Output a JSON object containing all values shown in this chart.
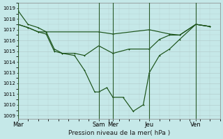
{
  "xlabel": "Pression niveau de la mer( hPa )",
  "bg_color": "#c5e8e8",
  "grid_color": "#b0c8c8",
  "line_color": "#1a5218",
  "vline_color": "#2a5a2a",
  "ylim": [
    1009,
    1019
  ],
  "yticks": [
    1009,
    1010,
    1011,
    1012,
    1013,
    1014,
    1015,
    1016,
    1017,
    1018,
    1019
  ],
  "day_labels": [
    "Mar",
    "Sam",
    "Mer",
    "Jeu",
    "Ven"
  ],
  "day_x": [
    0,
    40,
    47,
    65,
    88
  ],
  "vline_x": [
    0,
    40,
    47,
    65,
    88
  ],
  "xlim": [
    0,
    100
  ],
  "line1_x": [
    0,
    5,
    10,
    14,
    40,
    47,
    65,
    75,
    80,
    88,
    95
  ],
  "line1_y": [
    1017.5,
    1017.2,
    1016.8,
    1016.8,
    1016.8,
    1016.6,
    1017.0,
    1016.6,
    1016.5,
    1017.5,
    1017.3
  ],
  "line2_x": [
    0,
    5,
    10,
    14,
    18,
    22,
    28,
    33,
    40,
    47,
    55,
    65,
    70,
    75,
    80,
    88,
    95
  ],
  "line2_y": [
    1017.5,
    1017.2,
    1016.8,
    1016.6,
    1015.0,
    1014.8,
    1014.8,
    1014.6,
    1015.5,
    1014.8,
    1015.2,
    1015.2,
    1016.1,
    1016.5,
    1016.5,
    1017.5,
    1017.3
  ],
  "line3_x": [
    0,
    5,
    10,
    14,
    18,
    22,
    28,
    33,
    38,
    40,
    44,
    47,
    52,
    57,
    62,
    65,
    70,
    75,
    80,
    88,
    95
  ],
  "line3_y": [
    1018.8,
    1017.5,
    1017.2,
    1016.8,
    1015.2,
    1014.8,
    1014.6,
    1013.2,
    1011.2,
    1011.2,
    1011.6,
    1010.7,
    1010.7,
    1009.4,
    1010.0,
    1013.0,
    1014.6,
    1015.2,
    1016.1,
    1017.5,
    1017.3
  ]
}
